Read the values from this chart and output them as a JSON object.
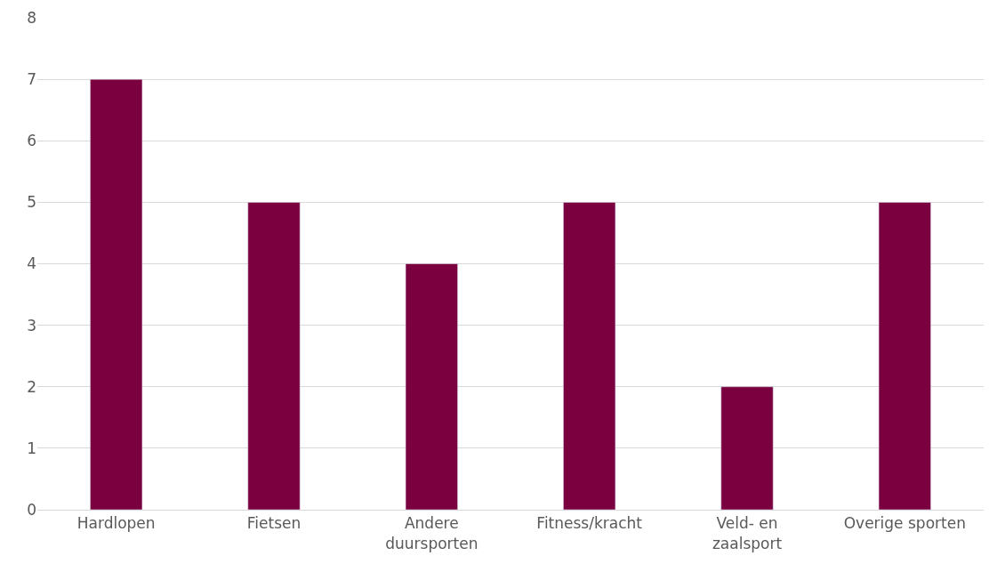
{
  "chart_data": {
    "type": "bar",
    "categories": [
      "Hardlopen",
      "Fietsen",
      "Andere duursporten",
      "Fitness/kracht",
      "Veld- en zaalsport",
      "Overige sporten"
    ],
    "values": [
      7,
      5,
      4,
      5,
      2,
      5
    ],
    "color": "#7a0040",
    "ylim": [
      0,
      8
    ],
    "yticks": [
      0,
      1,
      2,
      3,
      4,
      5,
      6,
      7,
      8
    ],
    "grid": "y"
  }
}
